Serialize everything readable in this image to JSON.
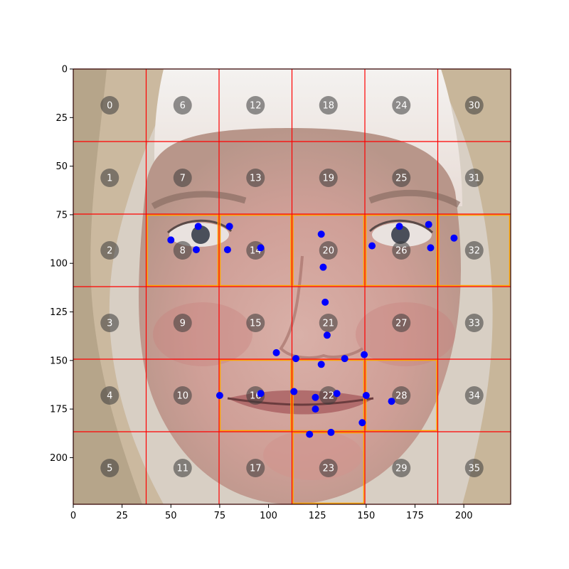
{
  "chart_data": {
    "type": "scatter",
    "image_content": "face photograph with grid overlay",
    "xlim": [
      0,
      224
    ],
    "ylim": [
      224,
      0
    ],
    "x_ticks": [
      0,
      25,
      50,
      75,
      100,
      125,
      150,
      175,
      200
    ],
    "y_ticks": [
      0,
      25,
      50,
      75,
      100,
      125,
      150,
      175,
      200
    ],
    "grid": {
      "rows": 6,
      "cols": 6,
      "cell_size": 37.33,
      "line_color": "#ff0000"
    },
    "cell_labels": [
      "0",
      "1",
      "2",
      "3",
      "4",
      "5",
      "6",
      "7",
      "8",
      "9",
      "10",
      "11",
      "12",
      "13",
      "14",
      "15",
      "16",
      "17",
      "18",
      "19",
      "20",
      "21",
      "22",
      "23",
      "24",
      "25",
      "26",
      "27",
      "28",
      "29",
      "30",
      "31",
      "32",
      "33",
      "34",
      "35"
    ],
    "highlighted_cells": [
      8,
      14,
      20,
      26,
      32,
      16,
      22,
      28,
      23
    ],
    "highlight_color": "#ffa500",
    "landmark_color": "#0000ff",
    "landmarks": [
      [
        64,
        81
      ],
      [
        80,
        81
      ],
      [
        50,
        88
      ],
      [
        63,
        93
      ],
      [
        79,
        93
      ],
      [
        96,
        92
      ],
      [
        127,
        85
      ],
      [
        128,
        102
      ],
      [
        129,
        120
      ],
      [
        130,
        137
      ],
      [
        167,
        81
      ],
      [
        182,
        80
      ],
      [
        195,
        87
      ],
      [
        153,
        91
      ],
      [
        183,
        92
      ],
      [
        104,
        146
      ],
      [
        114,
        149
      ],
      [
        127,
        152
      ],
      [
        139,
        149
      ],
      [
        149,
        147
      ],
      [
        75,
        168
      ],
      [
        96,
        167
      ],
      [
        113,
        166
      ],
      [
        124,
        169
      ],
      [
        135,
        167
      ],
      [
        150,
        168
      ],
      [
        163,
        171
      ],
      [
        124,
        175
      ],
      [
        148,
        182
      ],
      [
        121,
        188
      ],
      [
        132,
        187
      ]
    ]
  }
}
